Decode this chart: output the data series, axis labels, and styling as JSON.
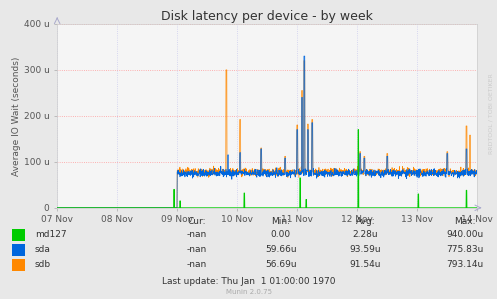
{
  "title": "Disk latency per device - by week",
  "ylabel": "Average IO Wait (seconds)",
  "bg_color": "#e8e8e8",
  "plot_bg_color": "#f5f5f5",
  "grid_color_h": "#ff9999",
  "grid_color_v": "#ccccee",
  "ytick_labels": [
    "0",
    "100 u",
    "200 u",
    "300 u",
    "400 u"
  ],
  "ytick_vals": [
    0,
    100,
    200,
    300,
    400
  ],
  "xtick_labels": [
    "07 Nov",
    "08 Nov",
    "09 Nov",
    "10 Nov",
    "11 Nov",
    "12 Nov",
    "13 Nov",
    "14 Nov"
  ],
  "legend_items": [
    {
      "label": "md127",
      "color": "#00cc00"
    },
    {
      "label": "sda",
      "color": "#0066dd"
    },
    {
      "label": "sdb",
      "color": "#ff8800"
    }
  ],
  "stats_rows": [
    [
      "-nan",
      "0.00",
      "2.28u",
      "940.00u"
    ],
    [
      "-nan",
      "59.66u",
      "93.59u",
      "775.83u"
    ],
    [
      "-nan",
      "56.69u",
      "91.54u",
      "793.14u"
    ]
  ],
  "last_update": "Last update: Thu Jan  1 01:00:00 1970",
  "munin_version": "Munin 2.0.75",
  "rrdtool_label": "RRDTOOL / TOBI OETIKER",
  "ylim": [
    0,
    400
  ],
  "title_fontsize": 9,
  "axis_fontsize": 6.5,
  "legend_fontsize": 6.5
}
